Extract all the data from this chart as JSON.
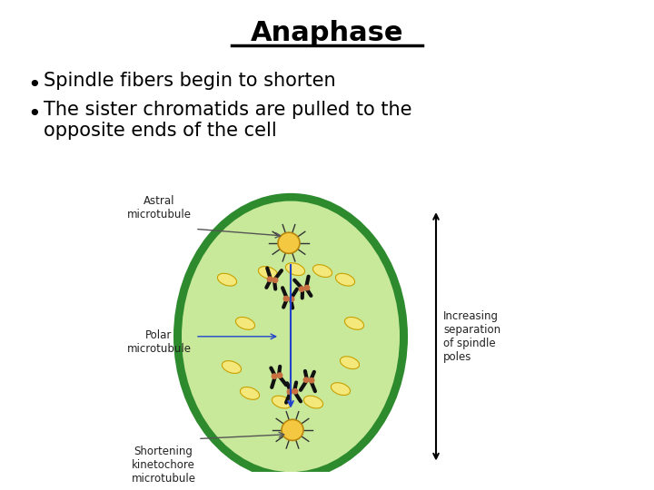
{
  "title": "Anaphase",
  "bullet1": "Spindle fibers begin to shorten",
  "bullet2": "The sister chromatids are pulled to the\nopposite ends of the cell",
  "bg_color": "#ffffff",
  "cell_outer_color": "#2d8a2d",
  "cell_inner_color": "#c8e89a",
  "centrosome_color": "#f5c842",
  "chromatid_color": "#111111",
  "kinetochore_color": "#c87040",
  "label_astral": "Astral\nmicrotubule",
  "label_polar": "Polar\nmicrotubule",
  "label_shortening": "Shortening\nkinetochore\nmicrotubule",
  "label_increasing": "Increasing\nseparation\nof spindle\npoles",
  "title_fontsize": 22,
  "bullet_fontsize": 15
}
